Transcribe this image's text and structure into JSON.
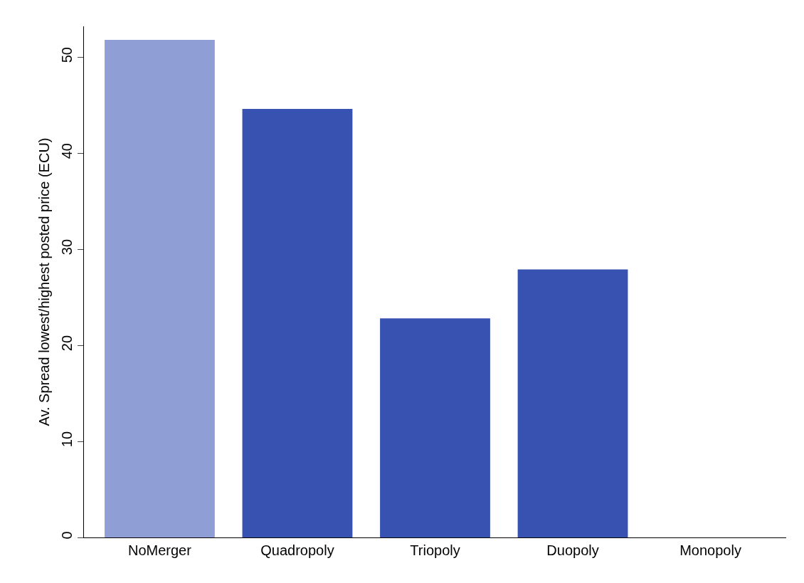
{
  "chart_data": {
    "type": "bar",
    "ylabel": "Av. Spread lowest/highest posted price (ECU)",
    "categories": [
      "NoMerger",
      "Quadropoly",
      "Triopoly",
      "Duopoly",
      "Monopoly"
    ],
    "values": [
      51.8,
      44.6,
      22.8,
      27.9,
      0
    ],
    "colors": [
      "#8f9fd6",
      "#3752b0",
      "#3752b0",
      "#3752b0",
      "#3752b0"
    ],
    "ylim": [
      0,
      53.2
    ],
    "yticks": [
      0,
      10,
      20,
      30,
      40,
      50
    ],
    "grid": false
  }
}
